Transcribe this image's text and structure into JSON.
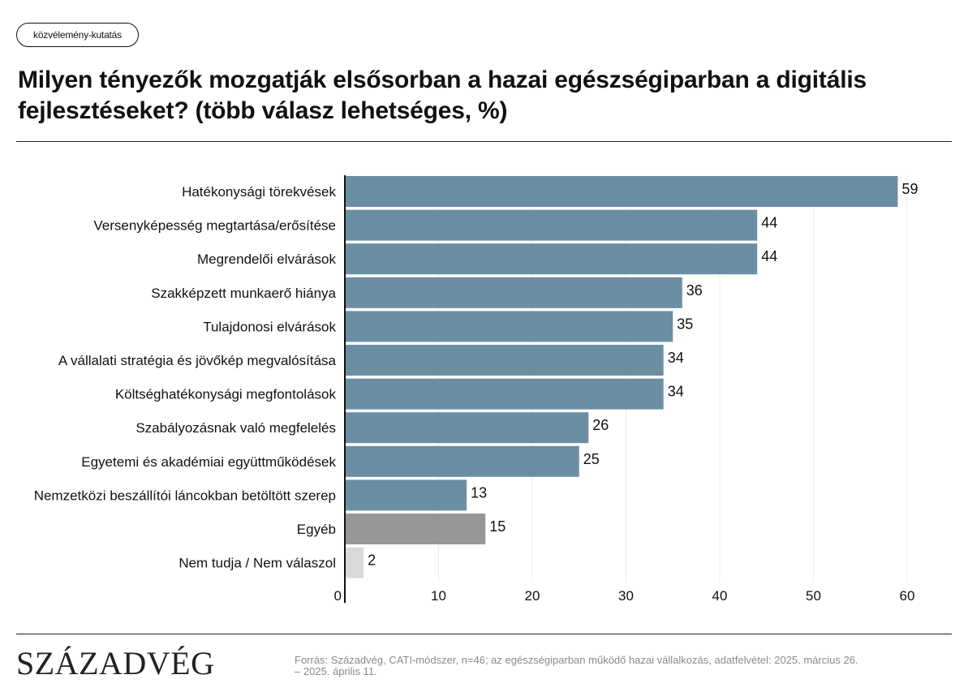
{
  "tag": "közvélemény-kutatás",
  "title": "Milyen tényezők mozgatják elsősorban a hazai egészségiparban a digitális fejlesztéseket? (több válasz lehetséges, %)",
  "logo": "SZÁZADVÉG",
  "source": "Forrás: Századvég, CATI-módszer, n=46; az egészségiparban működő hazai vállalkozás, adatfelvétel: 2025. március 26. – 2025. április 11.",
  "colors": {
    "main": "#6a8fa3",
    "other": "#969696",
    "dont_know": "#d9d9d9"
  },
  "chart_data": {
    "type": "bar",
    "orientation": "horizontal",
    "title": "Milyen tényezők mozgatják elsősorban a hazai egészségiparban a digitális fejlesztéseket? (több válasz lehetséges, %)",
    "categories": [
      "Hatékonysági törekvések",
      "Versenyképesség megtartása/erősítése",
      "Megrendelői elvárások",
      "Szakképzett munkaerő hiánya",
      "Tulajdonosi elvárások",
      "A vállalati stratégia és jövőkép megvalósítása",
      "Költséghatékonysági megfontolások",
      "Szabályozásnak való megfelelés",
      "Egyetemi és akadémiai együttműködések",
      "Nemzetközi beszállítói láncokban betöltött szerep",
      "Egyéb",
      "Nem tudja / Nem válaszol"
    ],
    "values": [
      59,
      44,
      44,
      36,
      35,
      34,
      34,
      26,
      25,
      13,
      15,
      2
    ],
    "bar_colors": [
      "#6a8fa3",
      "#6a8fa3",
      "#6a8fa3",
      "#6a8fa3",
      "#6a8fa3",
      "#6a8fa3",
      "#6a8fa3",
      "#6a8fa3",
      "#6a8fa3",
      "#6a8fa3",
      "#969696",
      "#d9d9d9"
    ],
    "xlim": [
      0,
      60
    ],
    "xticks": [
      0,
      10,
      20,
      30,
      40,
      50,
      60
    ],
    "grid": "vertical",
    "xlabel": "",
    "ylabel": ""
  }
}
